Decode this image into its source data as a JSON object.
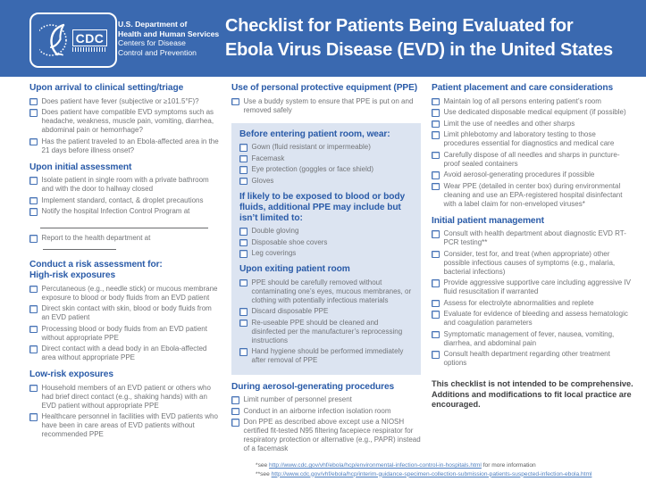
{
  "theme": {
    "header_bg": "#3a69b0",
    "heading_color": "#2a5ba8",
    "body_color": "#727477",
    "box_bg": "#dce4f1",
    "link_color": "#4e7fc0"
  },
  "header": {
    "logo": {
      "cdc_text": "CDC",
      "dept_lines": [
        "U.S. Department of",
        "Health and Human Services",
        "Centers for Disease",
        "Control and Prevention"
      ]
    },
    "title_line1": "Checklist for Patients Being Evaluated for",
    "title_line2": "Ebola Virus Disease (EVD) in the United States"
  },
  "columns": [
    {
      "sections": [
        {
          "heading": [
            "Upon arrival to clinical setting/triage"
          ],
          "items": [
            "Does patient have fever (subjective or ≥101.5°F)?",
            "Does patient have compatible EVD symptoms such as headache, weakness, muscle pain, vomiting, diarrhea, abdominal pain or hemorrhage?",
            "Has the patient traveled to an Ebola-affected area in the 21 days before illness onset?"
          ]
        },
        {
          "heading": [
            "Upon initial assessment"
          ],
          "items": [
            "Isolate patient in single room with a private bathroom and with the door to hallway closed",
            "Implement standard, contact, & droplet precautions",
            {
              "text": "Notify the hospital Infection Control Program at",
              "blank_after": true
            },
            {
              "text": "Report to the health department at ",
              "blank_inline": true
            }
          ]
        },
        {
          "heading": [
            "Conduct a risk assessment for:",
            "High-risk exposures"
          ],
          "items": [
            "Percutaneous (e.g., needle stick) or mucous membrane exposure to blood or body fluids from an EVD patient",
            "Direct skin contact with skin, blood or body fluids from an EVD patient",
            "Processing blood or body fluids from an EVD patient without appropriate PPE",
            "Direct contact with a dead body in an Ebola-affected area without appropriate PPE"
          ]
        },
        {
          "heading": [
            "Low-risk exposures"
          ],
          "items": [
            "Household members of an EVD patient or others who had brief direct contact (e.g., shaking hands) with an EVD patient without appropriate PPE",
            "Healthcare personnel in facilities with EVD patients who have been in care areas of EVD patients without recommended PPE"
          ]
        }
      ]
    },
    {
      "sections": [
        {
          "heading": [
            "Use of personal protective equipment (PPE)"
          ],
          "items": [
            "Use a buddy system to ensure that PPE is put on and removed safely"
          ]
        },
        {
          "box": [
            {
              "heading": [
                "Before entering patient room, wear:"
              ],
              "items": [
                "Gown (fluid resistant or impermeable)",
                "Facemask",
                "Eye protection (goggles or face shield)",
                "Gloves"
              ]
            },
            {
              "heading": [
                "If likely to be exposed to blood or body",
                "fluids, additional PPE may include but",
                "isn’t limited to:"
              ],
              "items": [
                "Double gloving",
                "Disposable shoe covers",
                "Leg coverings"
              ]
            },
            {
              "heading": [
                "Upon exiting patient room"
              ],
              "items": [
                "PPE should be carefully removed without contaminating one’s eyes, mucous membranes, or clothing with potentially infectious materials",
                "Discard disposable PPE",
                "Re-useable PPE should be cleaned and disinfected per the manufacturer’s reprocessing instructions",
                "Hand hygiene should be performed immediately after removal of PPE"
              ]
            }
          ]
        },
        {
          "heading": [
            "During aerosol-generating procedures"
          ],
          "items": [
            "Limit number of personnel present",
            "Conduct in an airborne infection isolation room",
            "Don PPE as described above except use a NIOSH certified fit-tested N95 filtering facepiece respirator for respiratory protection or alternative (e.g., PAPR) instead of a facemask"
          ]
        }
      ]
    },
    {
      "sections": [
        {
          "heading": [
            "Patient placement and care considerations"
          ],
          "items": [
            "Maintain log of all persons entering patient’s room",
            "Use dedicated disposable medical equipment (if possible)",
            "Limit the use of needles and other sharps",
            "Limit phlebotomy and laboratory testing to those procedures essential for diagnostics and medical care",
            "Carefully dispose of all needles and sharps in puncture-proof sealed containers",
            "Avoid aerosol-generating procedures if possible",
            "Wear PPE (detailed in center box) during environmental cleaning and use an EPA-registered hospital disinfectant with a label claim for non-enveloped viruses*"
          ]
        },
        {
          "heading": [
            "Initial patient management"
          ],
          "items": [
            "Consult with health department about diagnostic EVD RT-PCR testing**",
            "Consider, test for, and treat (when appropriate) other possible infectious causes of symptoms (e.g., malaria, bacterial infections)",
            "Provide aggressive supportive care including aggressive IV fluid resuscitation if warranted",
            "Assess for electrolyte abnormalities and replete",
            "Evaluate for evidence of bleeding and assess hematologic and coagulation parameters",
            "Symptomatic management of fever, nausea, vomiting, diarrhea, and abdominal pain",
            "Consult health department regarding other treatment options"
          ]
        },
        {
          "note": "This checklist is not intended to be comprehensive. Additions and modifications to fit local practice are encouraged."
        }
      ]
    }
  ],
  "footer": {
    "line1_prefix": "*see ",
    "line1_link": "http://www.cdc.gov/vhf/ebola/hcp/environmental-infection-control-in-hospitals.html",
    "line1_suffix": " for more information",
    "line2_prefix": "**see ",
    "line2_link": "http://www.cdc.gov/vhf/ebola/hcp/interim-guidance-specimen-collection-submission-patients-suspected-infection-ebola.html"
  }
}
